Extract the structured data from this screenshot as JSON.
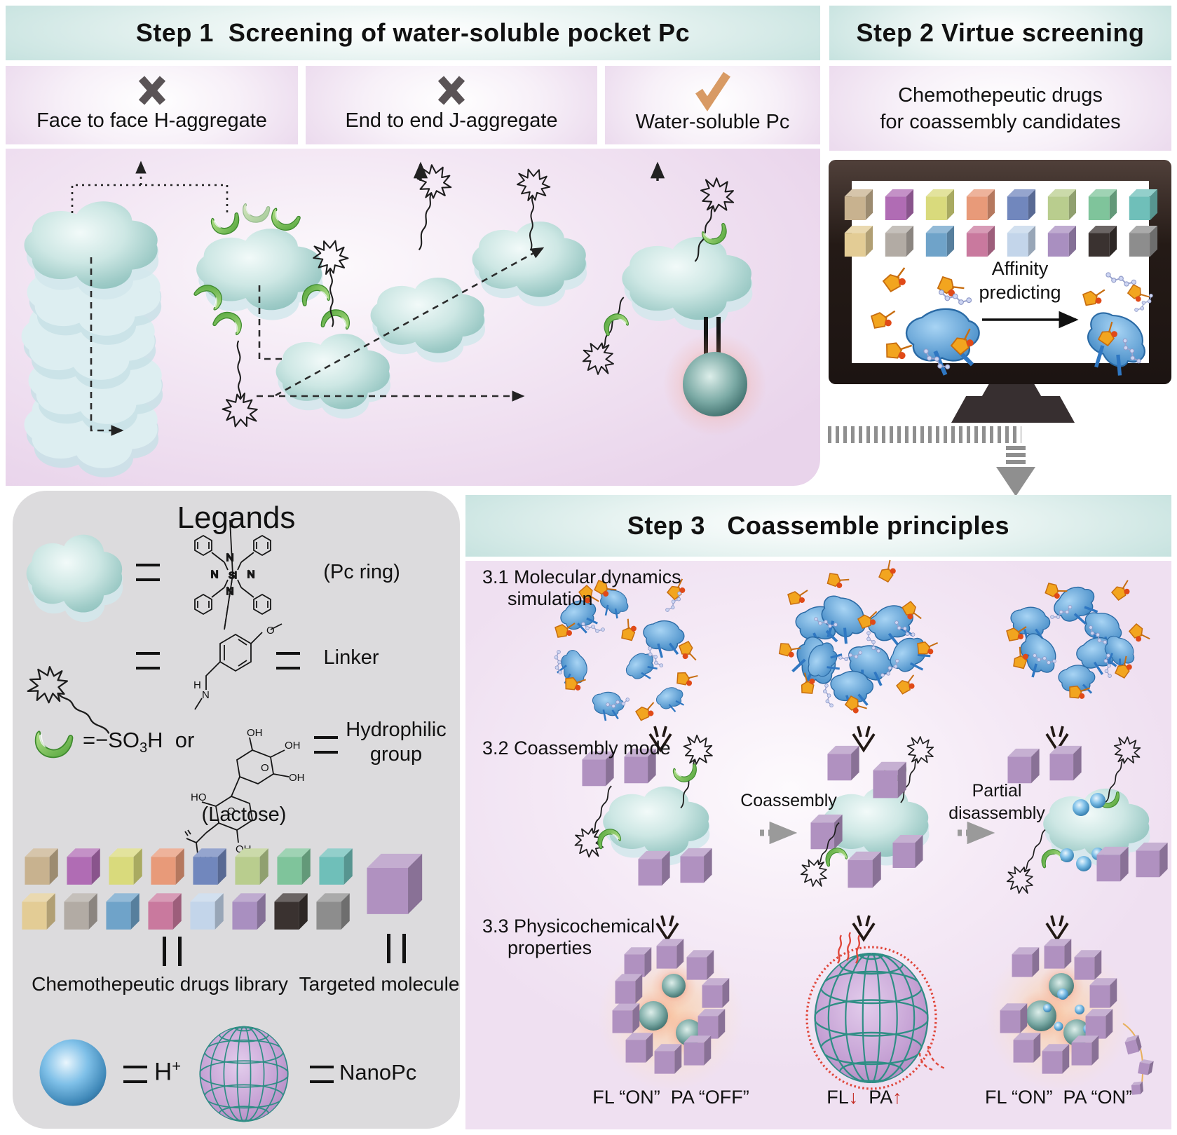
{
  "colors": {
    "teal_header": "#b6dad6",
    "pink_panel": "#e4cde7",
    "legends_gray": "#dcdbdd",
    "cross_mark": "#5a5356",
    "check_mark": "#d89a64",
    "drug_cube_purple": "#b091c0",
    "pocket_green": "#67bb4c",
    "pc_teal": "#9ecbc7",
    "sphere_teal": "#4f807d",
    "sphere_blue": "#4590c0",
    "glow_red": "#ef6a50",
    "nanopc_grid": "#2f8e85",
    "nanopc_fill": "#bb93cc",
    "arrow_gray": "#9a9a9a",
    "fl_red": "#c52f27"
  },
  "step1": {
    "title": "Step 1  Screening of water-soluble pocket Pc",
    "panels": [
      {
        "mark": "cross",
        "label": "Face to face H-aggregate"
      },
      {
        "mark": "cross",
        "label": "End to end J-aggregate"
      },
      {
        "mark": "check",
        "label": "Water-soluble Pc"
      }
    ]
  },
  "step2": {
    "title": "Step 2 Virtue screening",
    "subtitle_line1": "Chemothepeutic drugs",
    "subtitle_line2": "for coassembly candidates",
    "affinity_line1": "Affinity",
    "affinity_line2": "predicting"
  },
  "cubes": {
    "monitor_rows": [
      [
        "#c8b28f",
        "#b06cb4",
        "#d9da7c",
        "#e89a79",
        "#7187bd",
        "#b9cd8e",
        "#7fc49b",
        "#6fbfb9"
      ],
      [
        "#e3cc95",
        "#b2aba4",
        "#6fa3c9",
        "#c9799e",
        "#c3d5ea",
        "#a98fc0",
        "#3a3230",
        "#8d8d8d"
      ]
    ],
    "library_rows": [
      [
        "#c8b28f",
        "#b06cb4",
        "#d9da7c",
        "#e89a79",
        "#7187bd",
        "#b9cd8e",
        "#7fc49b",
        "#6fbfb9"
      ],
      [
        "#e3cc95",
        "#b2aba4",
        "#6fa3c9",
        "#c9799e",
        "#c3d5ea",
        "#a98fc0",
        "#3a3230",
        "#8d8d8d"
      ]
    ],
    "targeted": "#b091c0"
  },
  "legends": {
    "title": "Legands",
    "pc_ring": "(Pc ring)",
    "linker": "Linker",
    "so3h_eq": "=−SO",
    "so3h_sub": "3",
    "so3h_tail": "H",
    "or_word": "or",
    "hydrophilic_line1": "Hydrophilic",
    "hydrophilic_line2": "group",
    "lactose": "(Lactose)",
    "library_label": "Chemothepeutic drugs library",
    "targeted_label": "Targeted molecule",
    "h_symbol": "H",
    "h_sup": "+",
    "nanopc": "NanoPc",
    "atoms": {
      "n": "N",
      "si": "Si",
      "o": "O",
      "h": "H",
      "oh": "OH",
      "ho": "HO"
    }
  },
  "step3": {
    "title": "Step 3   Coassemble principles",
    "s31_line1": "3.1 Molecular dynamics",
    "s31_line2": "simulation",
    "s32": "3.2 Coassembly mode",
    "coassembly": "Coassembly",
    "partial_line1": "Partial",
    "partial_line2": "disassembly",
    "s33_line1": "3.3 Physicochemical",
    "s33_line2": "properties",
    "fl_left": "FL “ON”  PA “OFF”",
    "fl_mid_fl": "FL",
    "fl_mid_down": "↓",
    "fl_mid_pa": "PA",
    "fl_mid_up": "↑",
    "fl_right": "FL “ON”  PA “ON”"
  }
}
